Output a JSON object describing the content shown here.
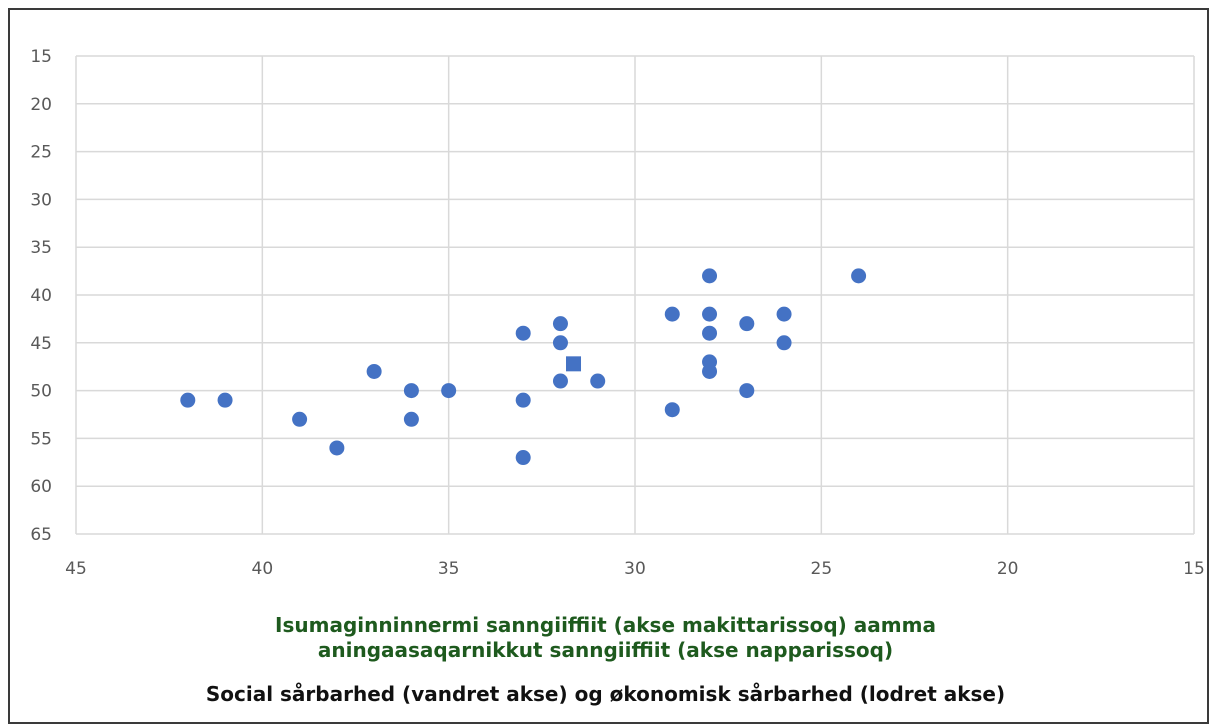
{
  "chart_data": {
    "type": "scatter",
    "title": "",
    "xlabel": "",
    "ylabel": "",
    "xlim": [
      45,
      15
    ],
    "ylim": [
      65,
      15
    ],
    "x_reversed": true,
    "y_reversed": true,
    "grid": true,
    "xticks": [
      "45",
      "40",
      "35",
      "30",
      "25",
      "20",
      "15"
    ],
    "yticks": [
      "15",
      "20",
      "25",
      "30",
      "35",
      "40",
      "45",
      "50",
      "55",
      "60",
      "65"
    ],
    "marker_color": "#4472C4",
    "series": [
      {
        "marker": "circle",
        "points": [
          [
            42,
            51
          ],
          [
            41,
            51
          ],
          [
            39,
            53
          ],
          [
            38,
            56
          ],
          [
            37,
            48
          ],
          [
            36,
            50
          ],
          [
            36,
            53
          ],
          [
            35,
            50
          ],
          [
            33,
            44
          ],
          [
            33,
            51
          ],
          [
            33,
            57
          ],
          [
            32,
            43
          ],
          [
            32,
            45
          ],
          [
            32,
            49
          ],
          [
            31,
            49
          ],
          [
            29,
            42
          ],
          [
            29,
            52
          ],
          [
            28,
            38
          ],
          [
            28,
            42
          ],
          [
            28,
            44
          ],
          [
            28,
            47
          ],
          [
            28,
            48
          ],
          [
            27,
            43
          ],
          [
            27,
            50
          ],
          [
            26,
            42
          ],
          [
            26,
            45
          ],
          [
            24,
            38
          ]
        ]
      },
      {
        "marker": "square",
        "points": [
          [
            31.65,
            47.2
          ]
        ]
      }
    ]
  },
  "captions": {
    "line1": "Isumaginninnermi sanngiiffiit (akse makittarissoq) aamma",
    "line2": "aningaasaqarnikkut sanngiiffiit (akse napparissoq)",
    "line3": "Social sårbarhed (vandret akse) og økonomisk sårbarhed (lodret akse)"
  }
}
